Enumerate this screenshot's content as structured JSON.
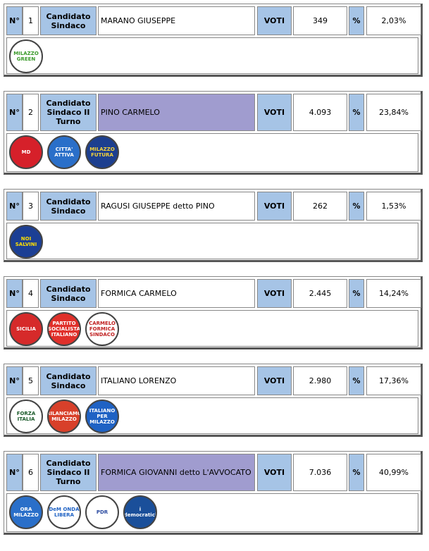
{
  "labels": {
    "number": "N°",
    "votes": "VOTI",
    "percent": "%"
  },
  "candidates": [
    {
      "number": 1,
      "role": "Candidato Sindaco",
      "name": "MARANO GIUSEPPE",
      "votes": "349",
      "percent": "2,03%",
      "runoff": false,
      "logos": [
        {
          "text": "MILAZZO GREEN",
          "color": "#ffffff",
          "ink": "#3a9a2a"
        }
      ]
    },
    {
      "number": 2,
      "role": "Candidato Sindaco II Turno",
      "name": "PINO CARMELO",
      "votes": "4.093",
      "percent": "23,84%",
      "runoff": true,
      "logos": [
        {
          "text": "MD",
          "color": "#d6202a",
          "ink": "#ffffff"
        },
        {
          "text": "CITTA' ATTIVA",
          "color": "#2a6fc9",
          "ink": "#ffffff"
        },
        {
          "text": "MILAZZO FUTURA",
          "color": "#1d3f8f",
          "ink": "#f7d43a"
        }
      ]
    },
    {
      "number": 3,
      "role": "Candidato Sindaco",
      "name": "RAGUSI GIUSEPPE detto PINO",
      "votes": "262",
      "percent": "1,53%",
      "runoff": false,
      "logos": [
        {
          "text": "NOI SALVINI",
          "color": "#1c3f94",
          "ink": "#ffe000"
        }
      ]
    },
    {
      "number": 4,
      "role": "Candidato Sindaco",
      "name": "FORMICA CARMELO",
      "votes": "2.445",
      "percent": "14,24%",
      "runoff": false,
      "logos": [
        {
          "text": "SICILIA",
          "color": "#d62a2a",
          "ink": "#ffffff"
        },
        {
          "text": "PARTITO SOCIALISTA ITALIANO",
          "color": "#e0302a",
          "ink": "#ffffff"
        },
        {
          "text": "CARMELO FORMICA SINDACO",
          "color": "#ffffff",
          "ink": "#c02020"
        }
      ]
    },
    {
      "number": 5,
      "role": "Candidato Sindaco",
      "name": "ITALIANO LORENZO",
      "votes": "2.980",
      "percent": "17,36%",
      "runoff": false,
      "logos": [
        {
          "text": "FORZA ITALIA",
          "color": "#ffffff",
          "ink": "#1a5a2a"
        },
        {
          "text": "RILANCIAMO MILAZZO",
          "color": "#d8402a",
          "ink": "#ffffff"
        },
        {
          "text": "ITALIANO PER MILAZZO",
          "color": "#1f62c4",
          "ink": "#ffffff"
        }
      ]
    },
    {
      "number": 6,
      "role": "Candidato Sindaco II Turno",
      "name": "FORMICA GIOVANNI detto L'AVVOCATO",
      "votes": "7.036",
      "percent": "40,99%",
      "runoff": true,
      "logos": [
        {
          "text": "ORA MILAZZO",
          "color": "#2a6fc9",
          "ink": "#ffffff"
        },
        {
          "text": "DeM ONDA LIBERA",
          "color": "#ffffff",
          "ink": "#1f62c4"
        },
        {
          "text": "PDR",
          "color": "#ffffff",
          "ink": "#2a4aa0"
        },
        {
          "text": "i democratici",
          "color": "#1a4f9a",
          "ink": "#ffffff"
        }
      ]
    }
  ]
}
